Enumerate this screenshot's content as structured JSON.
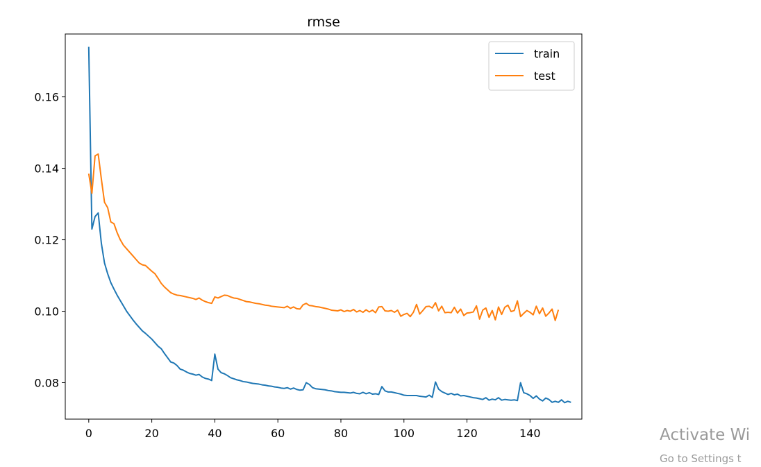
{
  "chart_data": {
    "type": "line",
    "title": "rmse",
    "xlabel": "",
    "ylabel": "",
    "xlim": [
      -7.45,
      156.45
    ],
    "ylim": [
      0.0698,
      0.1776
    ],
    "x_ticks": [
      0,
      20,
      40,
      60,
      80,
      100,
      120,
      140
    ],
    "y_ticks": [
      0.08,
      0.1,
      0.12,
      0.14,
      0.16
    ],
    "y_tick_labels": [
      "0.08",
      "0.10",
      "0.12",
      "0.14",
      "0.16"
    ],
    "grid": false,
    "legend_position": "top-right",
    "series": [
      {
        "name": "train",
        "color": "#1f77b4",
        "values": [
          0.174,
          0.123,
          0.1265,
          0.1275,
          0.119,
          0.1135,
          0.1105,
          0.108,
          0.1062,
          0.1045,
          0.103,
          0.1015,
          0.1,
          0.0988,
          0.0976,
          0.0965,
          0.0955,
          0.0945,
          0.0938,
          0.093,
          0.0922,
          0.0912,
          0.0902,
          0.0895,
          0.0882,
          0.087,
          0.0858,
          0.0855,
          0.0848,
          0.0838,
          0.0835,
          0.083,
          0.0826,
          0.0824,
          0.0821,
          0.0823,
          0.0816,
          0.0812,
          0.081,
          0.0806,
          0.088,
          0.0838,
          0.0828,
          0.0825,
          0.082,
          0.0814,
          0.0811,
          0.0808,
          0.0806,
          0.0803,
          0.0802,
          0.08,
          0.0798,
          0.0797,
          0.0796,
          0.0794,
          0.0793,
          0.0791,
          0.079,
          0.0788,
          0.0787,
          0.0785,
          0.0784,
          0.0786,
          0.0782,
          0.0785,
          0.0781,
          0.0779,
          0.078,
          0.08,
          0.0795,
          0.0786,
          0.0783,
          0.0782,
          0.0781,
          0.078,
          0.0778,
          0.0777,
          0.0775,
          0.0774,
          0.0773,
          0.0773,
          0.0772,
          0.0771,
          0.0773,
          0.077,
          0.0769,
          0.0773,
          0.0769,
          0.0772,
          0.0768,
          0.0769,
          0.0767,
          0.0789,
          0.0777,
          0.0774,
          0.0774,
          0.0772,
          0.077,
          0.0768,
          0.0765,
          0.0764,
          0.0764,
          0.0764,
          0.0764,
          0.0762,
          0.0761,
          0.076,
          0.0765,
          0.0759,
          0.0802,
          0.0782,
          0.0775,
          0.0771,
          0.0767,
          0.077,
          0.0766,
          0.0768,
          0.0763,
          0.0764,
          0.0762,
          0.076,
          0.0758,
          0.0757,
          0.0755,
          0.0753,
          0.0758,
          0.0751,
          0.0754,
          0.0752,
          0.0758,
          0.0751,
          0.0753,
          0.0752,
          0.0751,
          0.0752,
          0.075,
          0.08,
          0.0772,
          0.0769,
          0.0764,
          0.0756,
          0.0763,
          0.0754,
          0.0749,
          0.0757,
          0.0753,
          0.0745,
          0.0748,
          0.0745,
          0.0752,
          0.0744,
          0.0748,
          0.0745
        ]
      },
      {
        "name": "test",
        "color": "#ff7f0e",
        "values": [
          0.1385,
          0.133,
          0.1435,
          0.144,
          0.137,
          0.1305,
          0.129,
          0.125,
          0.1245,
          0.122,
          0.12,
          0.1185,
          0.1175,
          0.1165,
          0.1155,
          0.1145,
          0.1135,
          0.113,
          0.1128,
          0.112,
          0.1112,
          0.1105,
          0.1092,
          0.1078,
          0.1068,
          0.106,
          0.1052,
          0.1048,
          0.1045,
          0.1044,
          0.1042,
          0.104,
          0.1038,
          0.1036,
          0.1033,
          0.1037,
          0.1031,
          0.1027,
          0.1024,
          0.1022,
          0.104,
          0.1037,
          0.1041,
          0.1045,
          0.1044,
          0.104,
          0.1037,
          0.1036,
          0.1033,
          0.103,
          0.1027,
          0.1026,
          0.1024,
          0.1022,
          0.1021,
          0.1019,
          0.1017,
          0.1016,
          0.1014,
          0.1013,
          0.1012,
          0.1011,
          0.101,
          0.1014,
          0.1008,
          0.1012,
          0.1007,
          0.1006,
          0.1018,
          0.1022,
          0.1016,
          0.1015,
          0.1013,
          0.1012,
          0.101,
          0.1008,
          0.1006,
          0.1003,
          0.1002,
          0.1001,
          0.1004,
          0.0999,
          0.1002,
          0.1,
          0.1005,
          0.0998,
          0.1002,
          0.0997,
          0.1004,
          0.0998,
          0.1003,
          0.0996,
          0.1012,
          0.1013,
          0.1001,
          0.1,
          0.1002,
          0.0997,
          0.1003,
          0.0986,
          0.0991,
          0.0994,
          0.0985,
          0.0997,
          0.1019,
          0.0992,
          0.1002,
          0.1013,
          0.1014,
          0.1009,
          0.1024,
          0.1001,
          0.1014,
          0.0996,
          0.0997,
          0.0996,
          0.1011,
          0.0995,
          0.1006,
          0.0988,
          0.0995,
          0.0996,
          0.0998,
          0.1015,
          0.0978,
          0.1003,
          0.1009,
          0.0983,
          0.1002,
          0.0976,
          0.1012,
          0.0991,
          0.1011,
          0.1017,
          0.0999,
          0.1002,
          0.1029,
          0.0985,
          0.0994,
          0.1002,
          0.0997,
          0.099,
          0.1014,
          0.0993,
          0.1009,
          0.0986,
          0.0995,
          0.1006,
          0.0974,
          0.1004
        ]
      }
    ]
  },
  "watermark": {
    "title": "Activate Wi",
    "subtitle": "Go to Settings t"
  }
}
